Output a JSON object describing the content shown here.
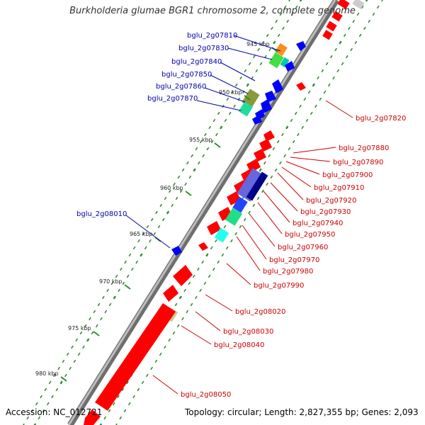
{
  "title": "Burkholderia glumae BGR1 chromosome 2, complete genome",
  "footer": {
    "accession": "Accession: NC_012721",
    "topology": "Topology: circular; Length: 2,827,355 bp; Genes: 2,093"
  },
  "colors": {
    "forward_gene": "#ff0000",
    "reverse_gene": "#0000ff",
    "forward_label": "#cc0000",
    "reverse_label": "#0000aa",
    "backbone": "#808080",
    "tick_major": "#2e8b2e"
  },
  "ruler": [
    {
      "label": "945 kbp"
    },
    {
      "label": "950 kbp"
    },
    {
      "label": "955 kbp"
    },
    {
      "label": "960 kbp"
    },
    {
      "label": "965 kbp"
    },
    {
      "label": "970 kbp"
    },
    {
      "label": "975 kbp"
    },
    {
      "label": "980 kbp"
    }
  ],
  "genes_reverse": [
    {
      "label": "bglu_2g07810"
    },
    {
      "label": "bglu_2g07830"
    },
    {
      "label": "bglu_2g07840"
    },
    {
      "label": "bglu_2g07850"
    },
    {
      "label": "bglu_2g07860"
    },
    {
      "label": "bglu_2g07870"
    },
    {
      "label": "bglu_2g08010"
    }
  ],
  "genes_forward": [
    {
      "label": "bglu_2g07820"
    },
    {
      "label": "bglu_2g07880"
    },
    {
      "label": "bglu_2g07890"
    },
    {
      "label": "bglu_2g07900"
    },
    {
      "label": "bglu_2g07910"
    },
    {
      "label": "bglu_2g07920"
    },
    {
      "label": "bglu_2g07930"
    },
    {
      "label": "bglu_2g07940"
    },
    {
      "label": "bglu_2g07950"
    },
    {
      "label": "bglu_2g07960"
    },
    {
      "label": "bglu_2g07970"
    },
    {
      "label": "bglu_2g07980"
    },
    {
      "label": "bglu_2g07990"
    },
    {
      "label": "bglu_2g08020"
    },
    {
      "label": "bglu_2g08030"
    },
    {
      "label": "bglu_2g08040"
    },
    {
      "label": "bglu_2g08050"
    }
  ]
}
